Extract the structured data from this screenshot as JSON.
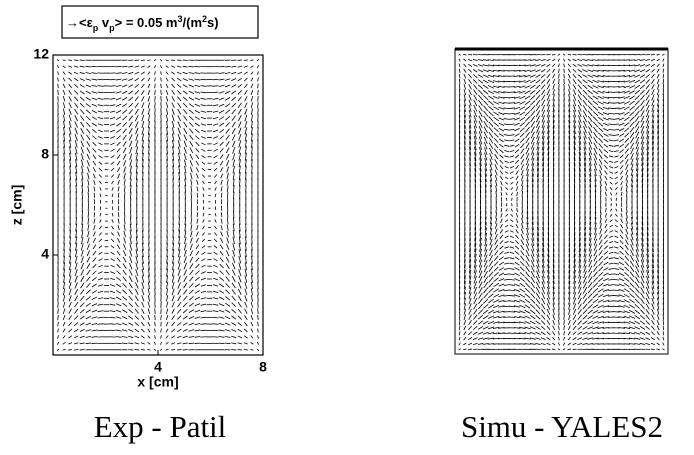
{
  "left_panel": {
    "legend": {
      "arrow": "→",
      "parts": [
        "<ε",
        "p",
        " v",
        "p",
        "> = 0.05 m",
        "3",
        "/(m",
        "2",
        "s)"
      ]
    },
    "x_label": "x [cm]",
    "z_label": "z [cm]",
    "xlim": [
      0,
      8
    ],
    "zlim": [
      0,
      12
    ],
    "xticks": [
      4,
      8
    ],
    "zticks": [
      4,
      8,
      12
    ],
    "caption": "Exp - Patil"
  },
  "right_panel": {
    "caption": "Simu - YALES2"
  }
}
